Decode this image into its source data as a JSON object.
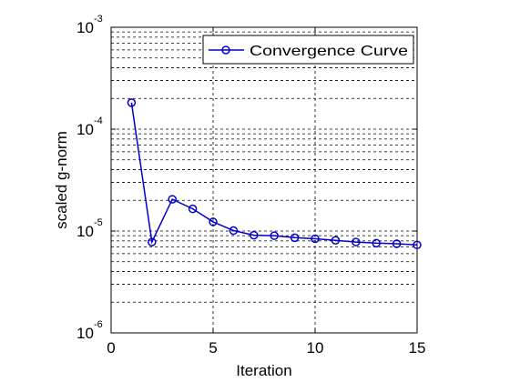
{
  "chart_data": {
    "type": "line",
    "title": "",
    "xlabel": "Iteration",
    "ylabel": "scaled g-norm",
    "xlim": [
      0,
      15
    ],
    "ylim": [
      1e-06,
      0.001
    ],
    "yscale": "log",
    "grid": true,
    "legend_position": "top-right",
    "x_ticks": [
      0,
      5,
      10,
      15
    ],
    "y_ticks": [
      {
        "base": "10",
        "exp": "-3",
        "value": 0.001
      },
      {
        "base": "10",
        "exp": "-4",
        "value": 0.0001
      },
      {
        "base": "10",
        "exp": "-5",
        "value": 1e-05
      },
      {
        "base": "10",
        "exp": "-6",
        "value": 1e-06
      }
    ],
    "series": [
      {
        "name": "Convergence Curve",
        "color": "#0000cc",
        "marker": "circle",
        "x": [
          1,
          2,
          3,
          4,
          5,
          6,
          7,
          8,
          9,
          10,
          11,
          12,
          13,
          14,
          15
        ],
        "y": [
          0.000182,
          7.8e-06,
          2.05e-05,
          1.65e-05,
          1.23e-05,
          1.01e-05,
          9.1e-06,
          9e-06,
          8.6e-06,
          8.4e-06,
          8.1e-06,
          7.8e-06,
          7.6e-06,
          7.5e-06,
          7.3e-06
        ]
      }
    ]
  }
}
